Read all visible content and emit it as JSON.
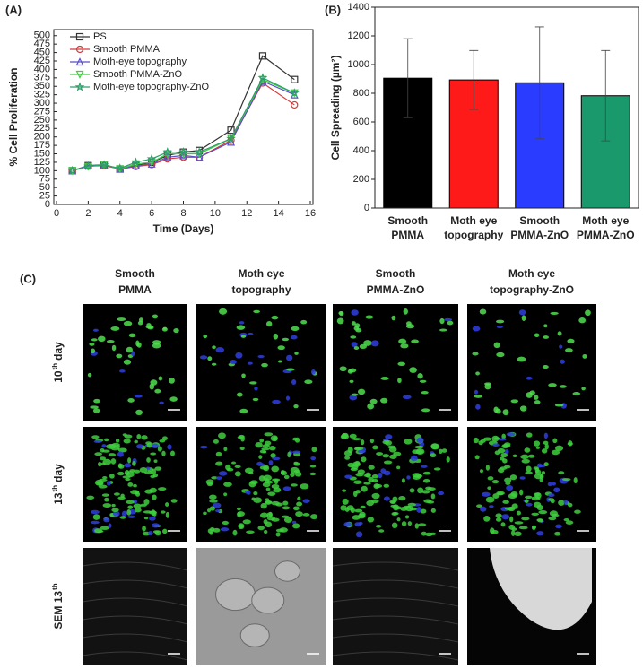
{
  "chart_data": [
    {
      "type": "line",
      "panel": "(A)",
      "x_label": "Time (Days)",
      "y_label": "% Cell Proliferation",
      "x": [
        1,
        2,
        3,
        4,
        5,
        6,
        7,
        8,
        9,
        11,
        13,
        15
      ],
      "xlim": [
        0,
        16
      ],
      "xticks": [
        0,
        2,
        4,
        6,
        8,
        10,
        12,
        14,
        16
      ],
      "ylim": [
        0,
        510
      ],
      "yticks": [
        0,
        25,
        50,
        75,
        100,
        125,
        150,
        175,
        200,
        225,
        250,
        275,
        300,
        325,
        350,
        375,
        400,
        425,
        450,
        475,
        500
      ],
      "legend": "upper left",
      "series": [
        {
          "name": "PS",
          "color": "#333333",
          "marker": "square",
          "values": [
            100,
            115,
            118,
            105,
            115,
            125,
            145,
            155,
            160,
            220,
            440,
            370
          ]
        },
        {
          "name": "Smooth PMMA",
          "color": "#d43b3b",
          "marker": "circle",
          "values": [
            100,
            113,
            115,
            105,
            112,
            118,
            135,
            140,
            140,
            190,
            360,
            295
          ]
        },
        {
          "name": "Moth-eye  topography",
          "color": "#5a4fc4",
          "marker": "triangle-up",
          "values": [
            100,
            115,
            117,
            105,
            115,
            120,
            140,
            145,
            140,
            185,
            365,
            325
          ]
        },
        {
          "name": "Smooth PMMA-ZnO",
          "color": "#3ccf3c",
          "marker": "triangle-down",
          "values": [
            100,
            112,
            118,
            105,
            120,
            125,
            150,
            150,
            150,
            195,
            370,
            330
          ]
        },
        {
          "name": "Moth-eye  topography-ZnO",
          "color": "#2ca06a",
          "marker": "star",
          "values": [
            100,
            113,
            117,
            107,
            125,
            135,
            155,
            155,
            155,
            195,
            375,
            330
          ]
        }
      ]
    },
    {
      "type": "bar",
      "panel": "(B)",
      "y_label": "Cell Spreading (µm²)",
      "categories": [
        [
          "Smooth",
          "PMMA"
        ],
        [
          "Moth eye",
          "topography"
        ],
        [
          "Smooth",
          "PMMA-ZnO"
        ],
        [
          "Moth eye",
          "PMMA-ZnO"
        ]
      ],
      "values": [
        905,
        893,
        873,
        783
      ],
      "errors": [
        275,
        205,
        390,
        315
      ],
      "colors": [
        "#000000",
        "#ff1a1a",
        "#2a3cff",
        "#1a9a6c"
      ],
      "ylim": [
        0,
        1400
      ],
      "yticks": [
        0,
        200,
        400,
        600,
        800,
        1000,
        1200,
        1400
      ]
    }
  ],
  "panel_c": {
    "label": "(C)",
    "columns": [
      [
        "Smooth",
        "PMMA"
      ],
      [
        "Moth eye",
        "topography"
      ],
      [
        "Smooth",
        "PMMA-ZnO"
      ],
      [
        "Moth eye",
        "topography-ZnO"
      ]
    ],
    "rows": [
      [
        {
          "text": "10"
        },
        {
          "sup": "th"
        },
        {
          "text": "day"
        }
      ],
      [
        {
          "text": "13"
        },
        {
          "sup": "th"
        },
        {
          "text": "day"
        }
      ],
      [
        {
          "text": "SEM 13"
        },
        {
          "sup": "th"
        }
      ]
    ]
  }
}
